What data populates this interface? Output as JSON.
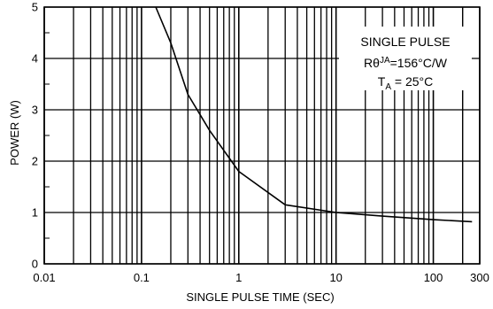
{
  "chart_data": {
    "type": "line",
    "xscale": "log",
    "xlim": [
      0.01,
      300
    ],
    "ylim": [
      0,
      5
    ],
    "grid": true,
    "xlabel": "SINGLE PULSE TIME (SEC)",
    "ylabel": "POWER (W)",
    "x_tick_labels": [
      "0.01",
      "0.1",
      "1",
      "10",
      "100",
      "300"
    ],
    "y_tick_labels": [
      "0",
      "1",
      "2",
      "3",
      "4",
      "5"
    ],
    "series": [
      {
        "x": [
          0.14,
          0.2,
          0.3,
          0.5,
          1,
          3,
          10,
          30,
          100,
          250
        ],
        "y": [
          5.0,
          4.3,
          3.3,
          2.6,
          1.8,
          1.15,
          1.0,
          0.93,
          0.86,
          0.82
        ]
      }
    ],
    "annotation": {
      "line1": "SINGLE PULSE",
      "line2_main": "Rθ",
      "line2_sup": "JA",
      "line2_rest": "=156°C/W",
      "line3_main": "T",
      "line3_sub": "A",
      "line3_rest": " = 25°C"
    }
  }
}
